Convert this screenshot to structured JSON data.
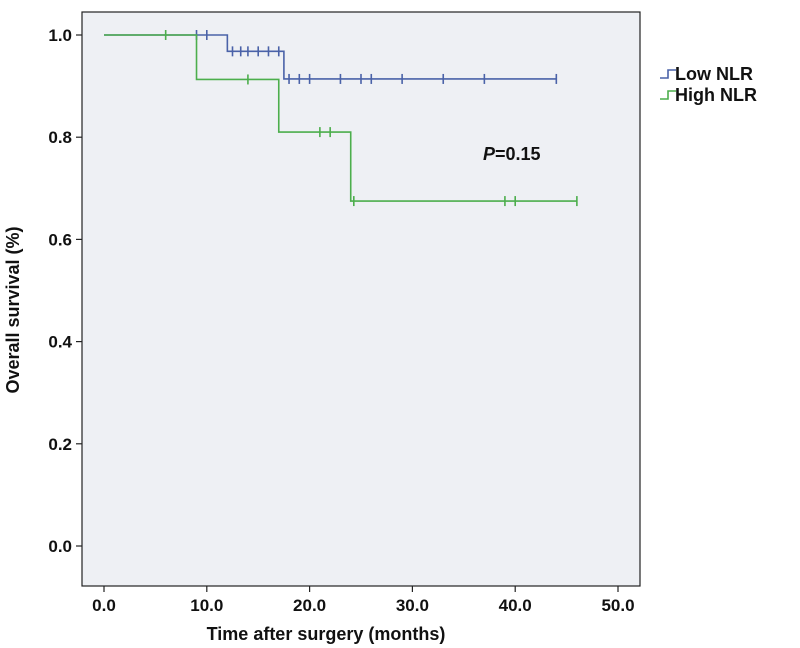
{
  "chart_data": {
    "type": "line",
    "title": "",
    "xlabel": "Time after surgery (months)",
    "ylabel": "Overall survival (%)",
    "xlim": [
      0,
      50
    ],
    "ylim": [
      0,
      1
    ],
    "x_ticks": [
      "0.0",
      "10.0",
      "20.0",
      "30.0",
      "40.0",
      "50.0"
    ],
    "y_ticks": [
      "0.0",
      "0.2",
      "0.4",
      "0.6",
      "0.8",
      "1.0"
    ],
    "grid": false,
    "legend_position": "outside-top-right",
    "annotation": {
      "italic": "P",
      "text": "=0.15",
      "x": 38,
      "y": 0.8
    },
    "series": [
      {
        "name": "Low NLR",
        "color": "#4a62a8",
        "steps": [
          [
            0,
            1.0
          ],
          [
            12,
            0.968
          ],
          [
            17.5,
            0.914
          ],
          [
            44,
            0.914
          ]
        ],
        "censored": [
          [
            9,
            1.0
          ],
          [
            10,
            1.0
          ],
          [
            12.5,
            0.968
          ],
          [
            13.3,
            0.968
          ],
          [
            14,
            0.968
          ],
          [
            15,
            0.968
          ],
          [
            16,
            0.968
          ],
          [
            17,
            0.968
          ],
          [
            18,
            0.914
          ],
          [
            19,
            0.914
          ],
          [
            20,
            0.914
          ],
          [
            23,
            0.914
          ],
          [
            25,
            0.914
          ],
          [
            26,
            0.914
          ],
          [
            29,
            0.914
          ],
          [
            33,
            0.914
          ],
          [
            37,
            0.914
          ],
          [
            44,
            0.914
          ]
        ]
      },
      {
        "name": "High NLR",
        "color": "#4cae4c",
        "steps": [
          [
            0,
            1.0
          ],
          [
            9,
            0.913
          ],
          [
            17,
            0.81
          ],
          [
            24,
            0.675
          ],
          [
            46,
            0.675
          ]
        ],
        "censored": [
          [
            6,
            1.0
          ],
          [
            14,
            0.913
          ],
          [
            21,
            0.81
          ],
          [
            22,
            0.81
          ],
          [
            24.3,
            0.675
          ],
          [
            39,
            0.675
          ],
          [
            40,
            0.675
          ],
          [
            46,
            0.675
          ]
        ]
      }
    ]
  }
}
